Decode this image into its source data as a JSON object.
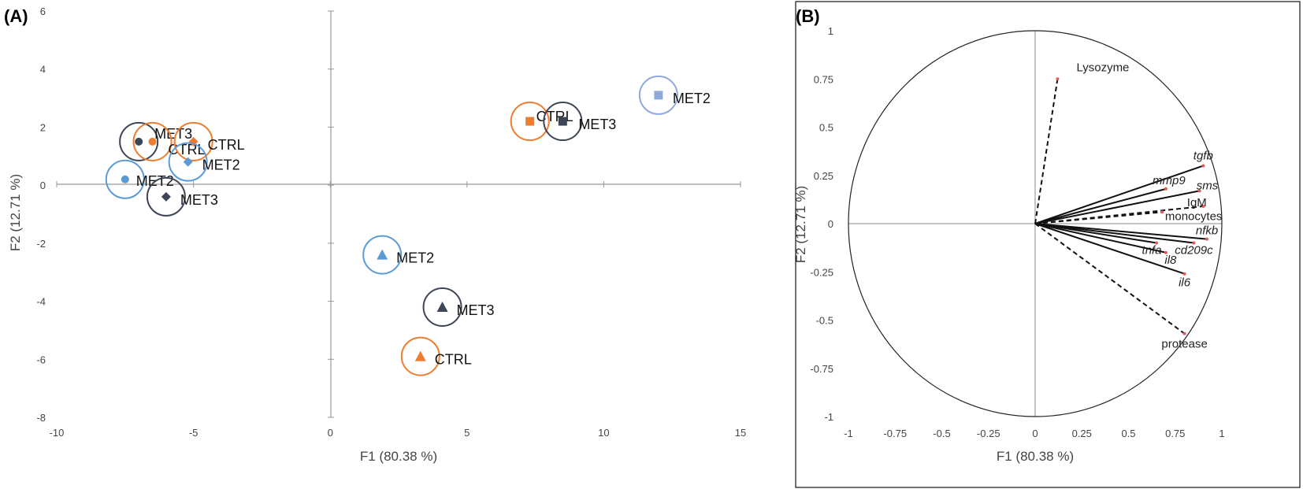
{
  "chart_data": [
    {
      "panel": "(A)",
      "type": "scatter",
      "xlabel": "F1 (80.38 %)",
      "ylabel": "F2 (12.71 %)",
      "xlim": [
        -10,
        15
      ],
      "ylim": [
        -8,
        6
      ],
      "xticks": [
        "-10",
        "-5",
        "0",
        "5",
        "10",
        "15"
      ],
      "yticks": [
        "-8",
        "-6",
        "-4",
        "-2",
        "0",
        "2",
        "4",
        "6"
      ],
      "points": [
        {
          "label": "MET3",
          "x": -7.0,
          "y": 1.5,
          "marker": "circle",
          "group": "MET3",
          "color": "#3c4656"
        },
        {
          "label": "CTRL",
          "x": -6.5,
          "y": 1.5,
          "marker": "circle",
          "group": "CTRL",
          "color": "#ed7d31"
        },
        {
          "label": "MET2",
          "x": -7.5,
          "y": 0.2,
          "marker": "circle",
          "group": "MET2",
          "color": "#5b9bd5"
        },
        {
          "label": "CTRL",
          "x": -5.0,
          "y": 1.5,
          "marker": "diamond",
          "group": "CTRL",
          "color": "#ed7d31"
        },
        {
          "label": "MET2",
          "x": -5.2,
          "y": 0.8,
          "marker": "diamond",
          "group": "MET2",
          "color": "#5b9bd5"
        },
        {
          "label": "MET3",
          "x": -6.0,
          "y": -0.4,
          "marker": "diamond",
          "group": "MET3",
          "color": "#3c4656"
        },
        {
          "label": "CTRL",
          "x": 7.3,
          "y": 2.2,
          "marker": "square",
          "group": "CTRL",
          "color": "#ed7d31"
        },
        {
          "label": "MET3",
          "x": 8.5,
          "y": 2.2,
          "marker": "square",
          "group": "MET3",
          "color": "#3c4656"
        },
        {
          "label": "MET2",
          "x": 12.0,
          "y": 3.1,
          "marker": "square",
          "group": "MET2",
          "color": "#8eaadb"
        },
        {
          "label": "MET2",
          "x": 1.9,
          "y": -2.4,
          "marker": "triangle",
          "group": "MET2",
          "color": "#5b9bd5"
        },
        {
          "label": "MET3",
          "x": 4.1,
          "y": -4.2,
          "marker": "triangle",
          "group": "MET3",
          "color": "#3c4656"
        },
        {
          "label": "CTRL",
          "x": 3.3,
          "y": -5.9,
          "marker": "triangle",
          "group": "CTRL",
          "color": "#ed7d31"
        }
      ]
    },
    {
      "panel": "(B)",
      "type": "correlation-circle",
      "xlabel": "F1 (80.38 %)",
      "ylabel": "F2 (12.71 %)",
      "xlim": [
        -1,
        1
      ],
      "ylim": [
        -1,
        1
      ],
      "xticks": [
        "-1",
        "-0.75",
        "-0.5",
        "-0.25",
        "0",
        "0.25",
        "0.5",
        "0.75",
        "1"
      ],
      "yticks": [
        "1",
        "0.75",
        "0.5",
        "0.25",
        "0",
        "-0.25",
        "-0.5",
        "-0.75",
        "-1"
      ],
      "vectors": [
        {
          "label": "Lysozyme",
          "x": 0.12,
          "y": 0.75,
          "style": "dashed",
          "italic": false
        },
        {
          "label": "tgfb",
          "x": 0.9,
          "y": 0.3,
          "style": "solid",
          "italic": true
        },
        {
          "label": "mmp9",
          "x": 0.7,
          "y": 0.18,
          "style": "solid",
          "italic": true
        },
        {
          "label": "sms",
          "x": 0.88,
          "y": 0.17,
          "style": "solid",
          "italic": true
        },
        {
          "label": "IgM",
          "x": 0.9,
          "y": 0.09,
          "style": "dashed",
          "italic": false
        },
        {
          "label": "monocytes",
          "x": 0.68,
          "y": 0.06,
          "style": "dashed",
          "italic": false
        },
        {
          "label": "nfkb",
          "x": 0.92,
          "y": -0.08,
          "style": "solid",
          "italic": true
        },
        {
          "label": "cd209c",
          "x": 0.85,
          "y": -0.1,
          "style": "solid",
          "italic": true
        },
        {
          "label": "tnfa",
          "x": 0.65,
          "y": -0.1,
          "style": "solid",
          "italic": true
        },
        {
          "label": "il8",
          "x": 0.7,
          "y": -0.15,
          "style": "solid",
          "italic": true
        },
        {
          "label": "il6",
          "x": 0.8,
          "y": -0.26,
          "style": "solid",
          "italic": true
        },
        {
          "label": "protease",
          "x": 0.8,
          "y": -0.57,
          "style": "dashed",
          "italic": false
        }
      ]
    }
  ]
}
